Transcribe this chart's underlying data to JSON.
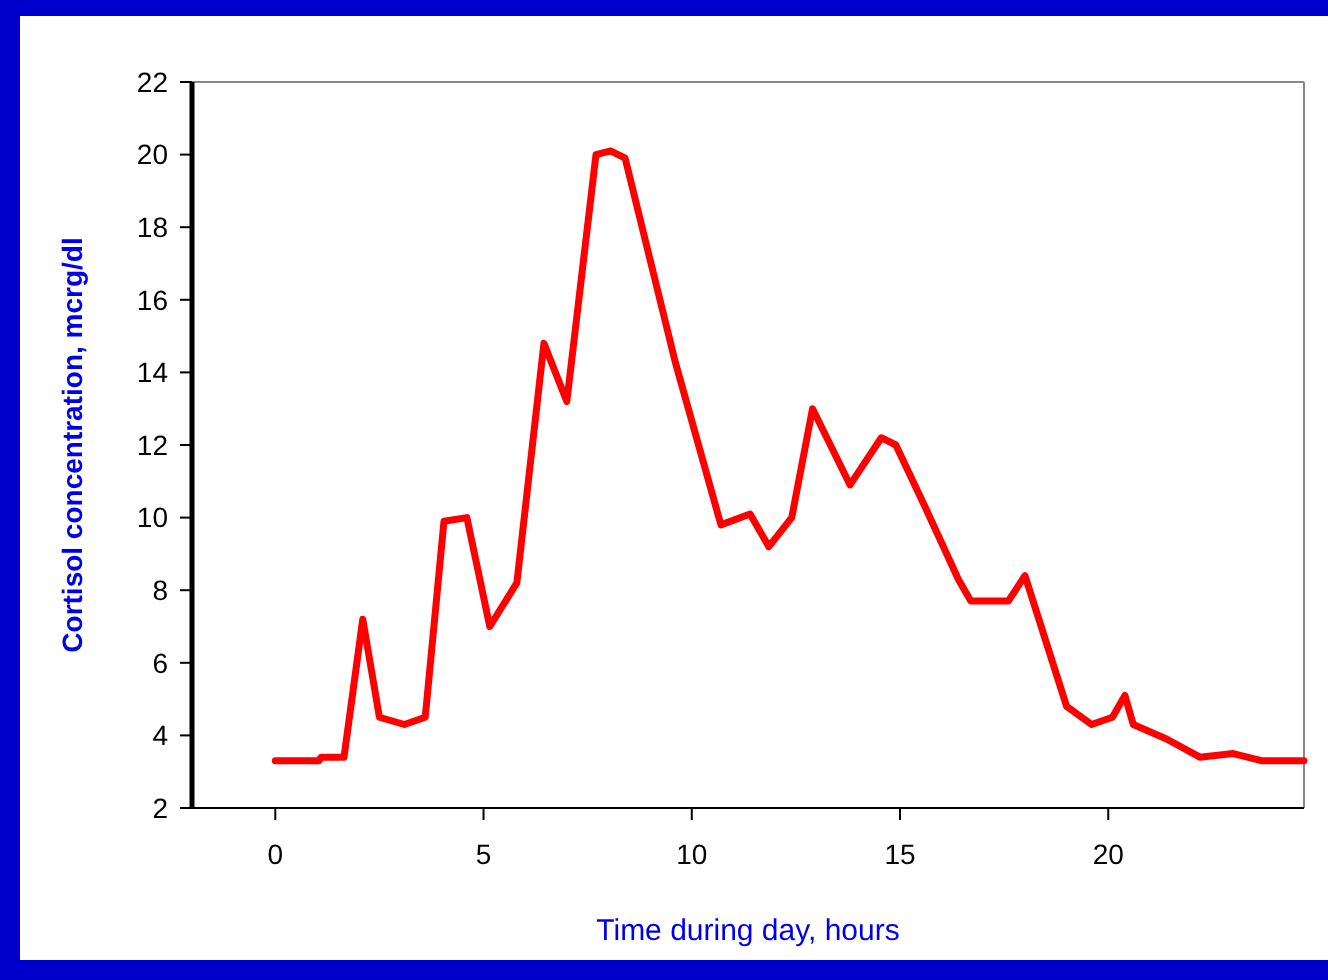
{
  "chart_data": {
    "type": "line",
    "xlabel": "Time during day, hours",
    "ylabel": "Cortisol concentration, mcrg/dl",
    "x": [
      0,
      1.05,
      1.1,
      1.65,
      2.1,
      2.5,
      3.1,
      3.6,
      4.05,
      4.6,
      5.15,
      5.8,
      6.45,
      7.0,
      7.7,
      8.05,
      8.4,
      9.6,
      10.7,
      11.4,
      11.85,
      12.4,
      12.9,
      13.8,
      14.55,
      14.9,
      15.6,
      16.4,
      16.7,
      17.6,
      18.0,
      19.0,
      19.6,
      20.1,
      20.4,
      20.6,
      21.4,
      22.2,
      23.0,
      23.7,
      24.7
    ],
    "series": [
      {
        "color": "#ff0000",
        "values": [
          3.3,
          3.3,
          3.4,
          3.4,
          7.2,
          4.5,
          4.3,
          4.5,
          9.9,
          10.0,
          7.0,
          8.2,
          14.8,
          13.2,
          20.0,
          20.1,
          19.9,
          14.3,
          9.8,
          10.1,
          9.2,
          10.0,
          13.0,
          10.9,
          12.2,
          12.0,
          10.3,
          8.3,
          7.7,
          7.7,
          8.4,
          4.8,
          4.3,
          4.5,
          5.1,
          4.3,
          3.9,
          3.4,
          3.5,
          3.3,
          3.3
        ]
      }
    ],
    "xlim": [
      -2,
      24.7
    ],
    "xticks": [
      0,
      5,
      10,
      15,
      20
    ],
    "ylim": [
      2,
      22
    ],
    "yticks": [
      2,
      4,
      6,
      8,
      10,
      12,
      14,
      16,
      18,
      20,
      22
    ],
    "marker": "none",
    "line_style": "solid"
  }
}
